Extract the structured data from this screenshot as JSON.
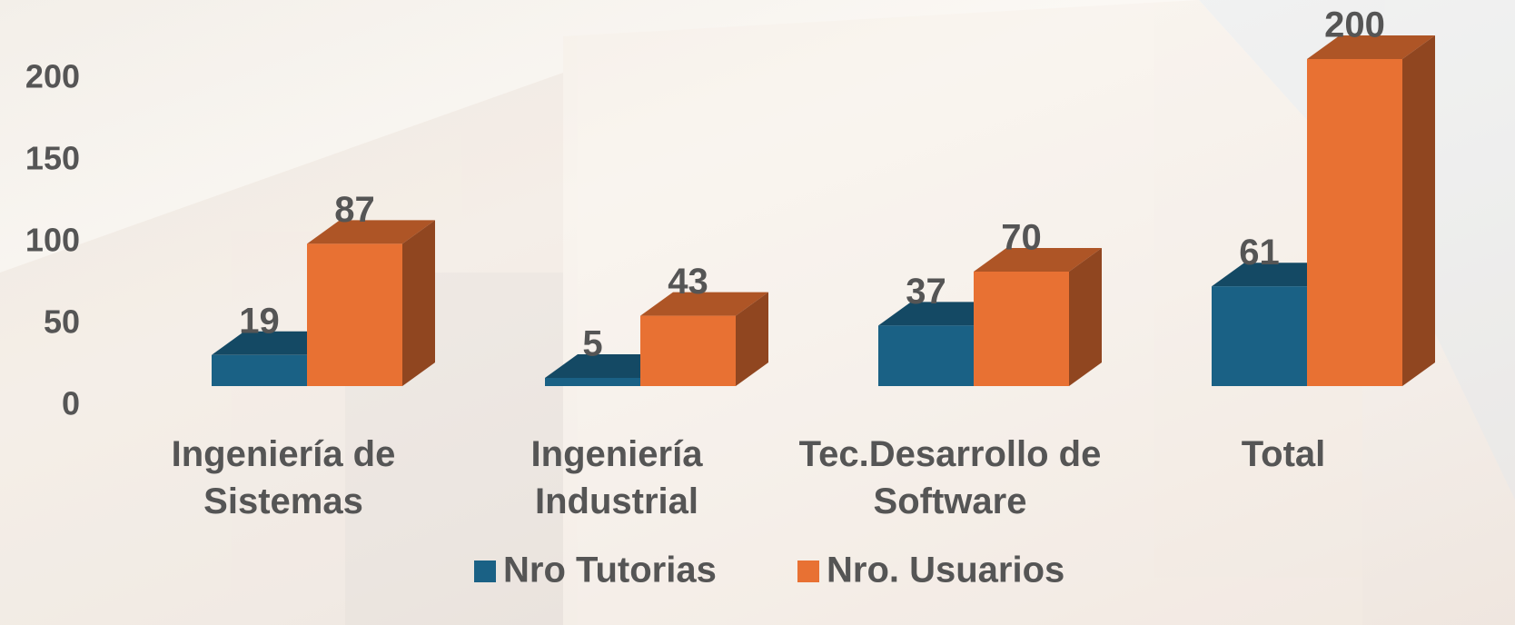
{
  "chart_data": {
    "type": "bar3d",
    "categories": [
      "Ingeniería de Sistemas",
      "Ingeniería Industrial",
      "Tec.Desarrollo de Software",
      "Total"
    ],
    "series": [
      {
        "name": "Nro Tutorias",
        "color": "#1a6185",
        "values": [
          19,
          5,
          37,
          61
        ]
      },
      {
        "name": "Nro. Usuarios",
        "color": "#e87133",
        "values": [
          87,
          43,
          70,
          200
        ]
      }
    ],
    "ylim": [
      0,
      200
    ],
    "yticks": [
      0,
      50,
      100,
      150,
      200
    ],
    "legend": "bottom"
  }
}
